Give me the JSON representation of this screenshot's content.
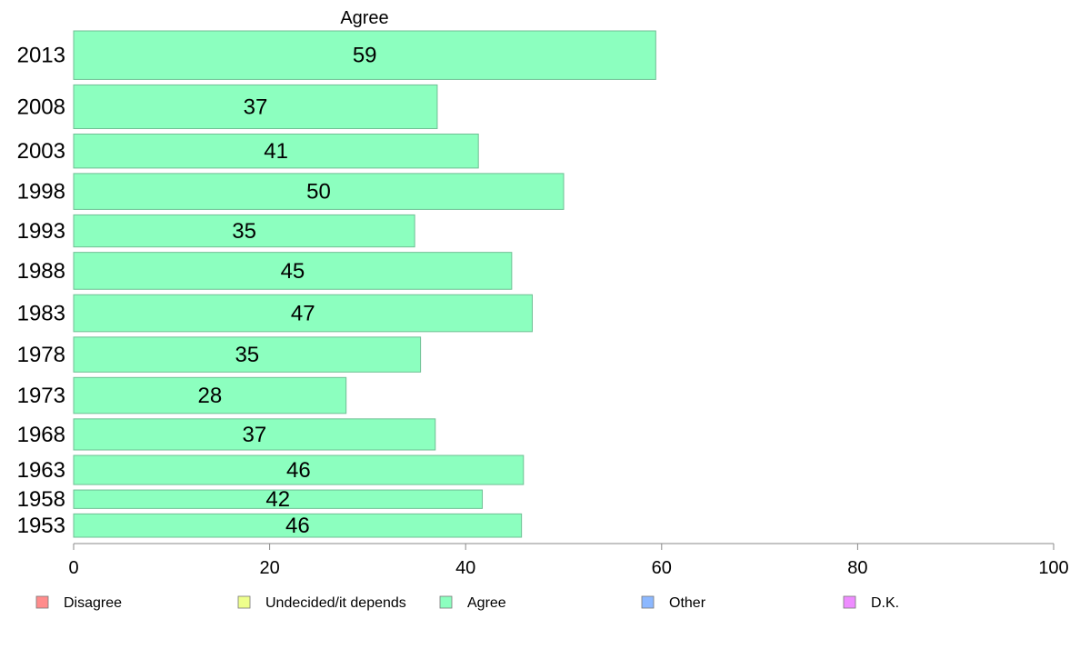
{
  "chart_data": {
    "type": "bar",
    "orientation": "horizontal",
    "title": "Agree",
    "categories": [
      "2013",
      "2008",
      "2003",
      "1998",
      "1993",
      "1988",
      "1983",
      "1978",
      "1973",
      "1968",
      "1963",
      "1958",
      "1953"
    ],
    "values": [
      59.4,
      37.1,
      41.3,
      50.0,
      34.8,
      44.7,
      46.8,
      35.4,
      27.8,
      36.9,
      45.9,
      41.7,
      45.7
    ],
    "value_labels": [
      "59",
      "37",
      "41",
      "50",
      "35",
      "45",
      "47",
      "35",
      "28",
      "37",
      "46",
      "42",
      "46"
    ],
    "bar_weights": [
      1.0,
      0.9,
      0.7,
      0.74,
      0.66,
      0.76,
      0.76,
      0.72,
      0.74,
      0.64,
      0.6,
      0.38,
      0.48
    ],
    "xlim": [
      0,
      100
    ],
    "xticks": [
      "0",
      "20",
      "40",
      "60",
      "80",
      "100"
    ],
    "grid": false,
    "legend": {
      "position": "bottom",
      "entries": [
        {
          "label": "Disagree",
          "color": "#ff8c8c"
        },
        {
          "label": "Undecided/it depends",
          "color": "#eeff8c"
        },
        {
          "label": "Agree",
          "color": "#8cffbf"
        },
        {
          "label": "Other",
          "color": "#8cb8ff"
        },
        {
          "label": "D.K.",
          "color": "#ee8cff"
        }
      ]
    },
    "bar_color": "#8cffbf",
    "bar_stroke": "#6fbf94",
    "axis_color": "#888888"
  }
}
